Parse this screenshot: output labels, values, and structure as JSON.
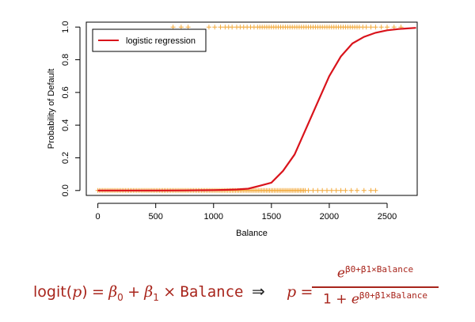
{
  "chart_data": {
    "type": "scatter",
    "xlabel": "Balance",
    "ylabel": "Probability of Default",
    "xlim": [
      -100,
      2760
    ],
    "ylim": [
      -0.03,
      1.03
    ],
    "x_ticks": [
      0,
      500,
      1000,
      1500,
      2000,
      2500
    ],
    "y_ticks": [
      0.0,
      0.2,
      0.4,
      0.6,
      0.8,
      1.0
    ],
    "y_tick_labels": [
      "0.0",
      "0.2",
      "0.4",
      "0.6",
      "0.8",
      "1.0"
    ],
    "legend": {
      "position": "top-left",
      "label": "logistic regression"
    },
    "series": [
      {
        "kind": "points",
        "marker": "+",
        "color": "#f2a93b",
        "y": 0,
        "x_dense_range": [
          0,
          1800
        ],
        "x_sparse": [
          1820,
          1860,
          1900,
          1940,
          1980,
          2020,
          2060,
          2100,
          2140,
          2190,
          2240,
          2300,
          2360,
          2400
        ]
      },
      {
        "kind": "points",
        "marker": "+",
        "color": "#f2a93b",
        "y": 1,
        "x": [
          650,
          720,
          780,
          960,
          1010,
          1060,
          1100,
          1130,
          1160,
          1200,
          1230,
          1260,
          1290,
          1320,
          1350,
          1380,
          1400,
          1420,
          1440,
          1460,
          1480,
          1500,
          1520,
          1540,
          1560,
          1580,
          1600,
          1620,
          1640,
          1660,
          1680,
          1700,
          1720,
          1740,
          1760,
          1780,
          1800,
          1820,
          1840,
          1860,
          1880,
          1900,
          1920,
          1940,
          1960,
          1980,
          2000,
          2020,
          2040,
          2060,
          2080,
          2100,
          2120,
          2140,
          2160,
          2180,
          2200,
          2220,
          2240,
          2260,
          2290,
          2320,
          2360,
          2400,
          2450,
          2500,
          2560,
          2620
        ]
      },
      {
        "kind": "line",
        "name": "logistic regression",
        "color": "#d9131b",
        "x": [
          0,
          250,
          500,
          750,
          1000,
          1100,
          1200,
          1300,
          1400,
          1500,
          1600,
          1700,
          1800,
          1900,
          2000,
          2100,
          2200,
          2300,
          2400,
          2500,
          2600,
          2750
        ],
        "y": [
          2e-05,
          5e-05,
          0.0002,
          0.0006,
          0.0023,
          0.004,
          0.0065,
          0.011,
          0.029,
          0.048,
          0.12,
          0.22,
          0.38,
          0.54,
          0.7,
          0.82,
          0.9,
          0.94,
          0.965,
          0.98,
          0.988,
          0.995
        ]
      }
    ]
  },
  "formula": {
    "lhs_func": "logit(",
    "lhs_var": "p",
    "lhs_close": ")",
    "equals": "=",
    "beta0": "β",
    "sub0": "0",
    "plus": "+",
    "beta1": "β",
    "sub1": "1",
    "times": "×",
    "balance": "Balance",
    "implies": "⇒",
    "rhs_var": "p",
    "num_base": "e",
    "exponent": "β0+β1×Balance",
    "den_prefix": "1 + ",
    "den_base": "e"
  }
}
